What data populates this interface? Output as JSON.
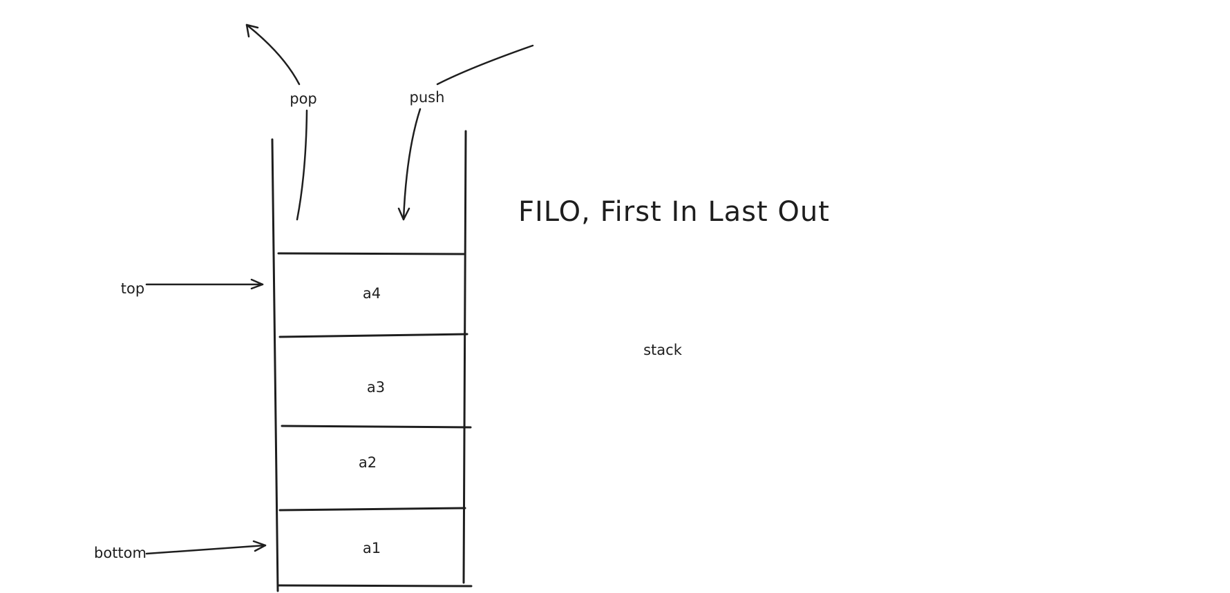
{
  "diagram": {
    "title": "FILO, First In Last Out",
    "caption": "stack",
    "operations": {
      "pop_label": "pop",
      "push_label": "push"
    },
    "pointers": {
      "top_label": "top",
      "bottom_label": "bottom"
    },
    "cells": [
      {
        "label": "a4"
      },
      {
        "label": "a3"
      },
      {
        "label": "a2"
      },
      {
        "label": "a1"
      }
    ],
    "stroke_color": "#1e1e1e",
    "background_color": "#ffffff"
  }
}
